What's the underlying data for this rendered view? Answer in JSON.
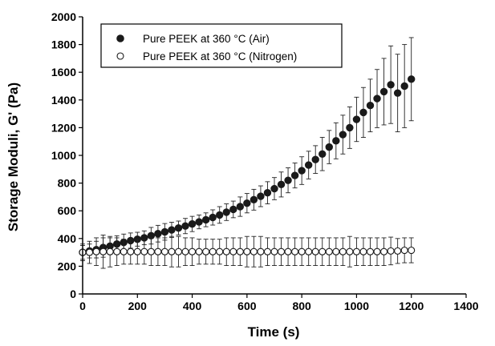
{
  "chart_data": {
    "type": "scatter",
    "title": "",
    "xlabel": "Time (s)",
    "ylabel": "Storage Moduli, G' (Pa)",
    "xlim": [
      0,
      1400
    ],
    "ylim": [
      0,
      2000
    ],
    "xticks": [
      "0",
      "200",
      "400",
      "600",
      "800",
      "1000",
      "1200",
      "1400"
    ],
    "yticks": [
      "0",
      "200",
      "400",
      "600",
      "800",
      "1000",
      "1200",
      "1400",
      "1600",
      "1800",
      "2000"
    ],
    "grid": false,
    "legend_position": "top-left",
    "series": [
      {
        "name": "Pure PEEK at 360 °C (Air)",
        "marker": "filled-circle",
        "color": "#1a1a1a",
        "x": [
          0,
          25,
          50,
          75,
          100,
          125,
          150,
          175,
          200,
          225,
          250,
          275,
          300,
          325,
          350,
          375,
          400,
          425,
          450,
          475,
          500,
          525,
          550,
          575,
          600,
          625,
          650,
          675,
          700,
          725,
          750,
          775,
          800,
          825,
          850,
          875,
          900,
          925,
          950,
          975,
          1000,
          1025,
          1050,
          1075,
          1100,
          1125,
          1150,
          1175,
          1200
        ],
        "y": [
          300,
          310,
          320,
          335,
          345,
          360,
          372,
          385,
          395,
          405,
          420,
          435,
          448,
          462,
          476,
          490,
          505,
          520,
          535,
          552,
          570,
          590,
          610,
          630,
          655,
          680,
          705,
          730,
          760,
          790,
          820,
          855,
          890,
          930,
          970,
          1010,
          1060,
          1105,
          1150,
          1200,
          1260,
          1310,
          1360,
          1410,
          1460,
          1510,
          1450,
          1500,
          1550
        ],
        "error": [
          50,
          50,
          60,
          70,
          60,
          60,
          60,
          55,
          50,
          50,
          60,
          60,
          60,
          55,
          50,
          55,
          55,
          50,
          50,
          55,
          60,
          60,
          60,
          70,
          70,
          75,
          75,
          80,
          80,
          90,
          90,
          90,
          100,
          100,
          100,
          120,
          120,
          130,
          140,
          150,
          160,
          180,
          190,
          210,
          240,
          280,
          280,
          300,
          300
        ]
      },
      {
        "name": "Pure PEEK at 360 °C (Nitrogen)",
        "marker": "open-circle",
        "color": "#1a1a1a",
        "x": [
          0,
          25,
          50,
          75,
          100,
          125,
          150,
          175,
          200,
          225,
          250,
          275,
          300,
          325,
          350,
          375,
          400,
          425,
          450,
          475,
          500,
          525,
          550,
          575,
          600,
          625,
          650,
          675,
          700,
          725,
          750,
          775,
          800,
          825,
          850,
          875,
          900,
          925,
          950,
          975,
          1000,
          1025,
          1050,
          1075,
          1100,
          1125,
          1150,
          1175,
          1200
        ],
        "y": [
          300,
          300,
          305,
          305,
          305,
          305,
          305,
          305,
          305,
          305,
          305,
          305,
          305,
          305,
          305,
          305,
          305,
          305,
          305,
          305,
          305,
          305,
          305,
          305,
          305,
          305,
          305,
          305,
          305,
          305,
          305,
          305,
          305,
          305,
          305,
          305,
          305,
          305,
          305,
          305,
          305,
          305,
          305,
          305,
          305,
          310,
          310,
          315,
          315
        ],
        "error": [
          60,
          80,
          100,
          120,
          110,
          100,
          90,
          90,
          90,
          90,
          100,
          100,
          100,
          110,
          110,
          100,
          100,
          90,
          90,
          90,
          90,
          100,
          100,
          100,
          110,
          110,
          110,
          100,
          100,
          100,
          100,
          100,
          100,
          100,
          100,
          100,
          100,
          100,
          100,
          110,
          100,
          100,
          100,
          100,
          100,
          100,
          90,
          90,
          90
        ]
      }
    ]
  }
}
